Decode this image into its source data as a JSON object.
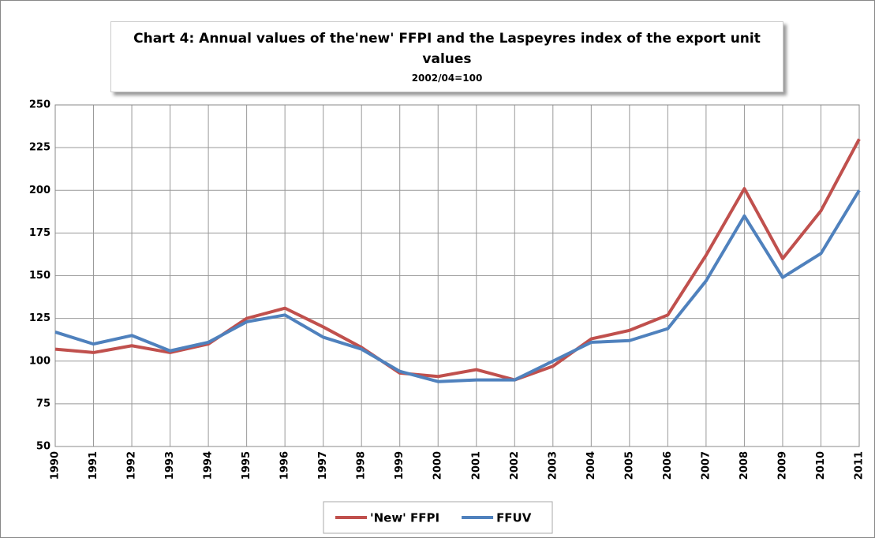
{
  "chart_data": {
    "type": "line",
    "title": "Chart  4: Annual values of the'new' FFPI  and the Laspeyres index of the export unit values",
    "subtitle": "2002/04=100",
    "categories": [
      "1990",
      "1991",
      "1992",
      "1993",
      "1994",
      "1995",
      "1996",
      "1997",
      "1998",
      "1999",
      "2000",
      "2001",
      "2002",
      "2003",
      "2004",
      "2005",
      "2006",
      "2007",
      "2008",
      "2009",
      "2010",
      "2011"
    ],
    "series": [
      {
        "name": "'New' FFPI",
        "color": "#c0504d",
        "values": [
          107,
          105,
          109,
          105,
          110,
          125,
          131,
          120,
          108,
          93,
          91,
          95,
          89,
          97,
          113,
          118,
          127,
          162,
          201,
          160,
          188,
          230
        ]
      },
      {
        "name": "FFUV",
        "color": "#4f81bd",
        "values": [
          117,
          110,
          115,
          106,
          111,
          123,
          127,
          114,
          107,
          94,
          88,
          89,
          89,
          100,
          111,
          112,
          119,
          147,
          185,
          149,
          163,
          200
        ]
      }
    ],
    "ylim": [
      50,
      250
    ],
    "yticks": [
      50,
      75,
      100,
      125,
      150,
      175,
      200,
      225,
      250
    ],
    "grid": true,
    "legend": "bottom"
  }
}
